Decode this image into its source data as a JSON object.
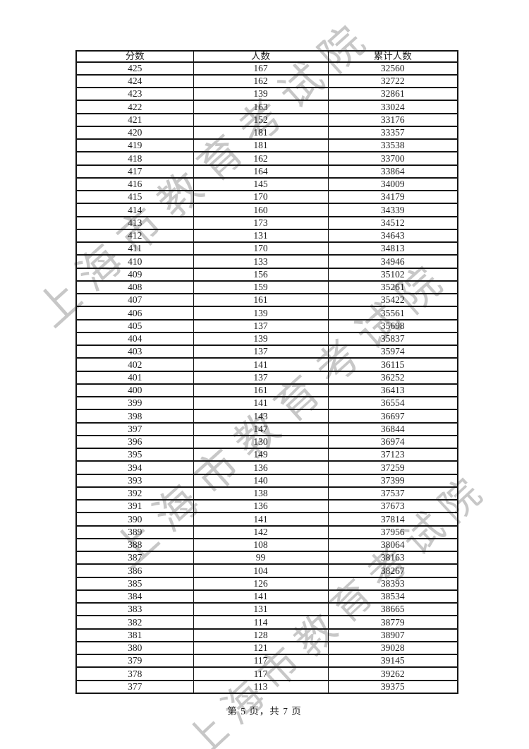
{
  "watermark": {
    "text": "上海市教育考试院",
    "color": "#c2c2c2"
  },
  "table": {
    "headers": [
      "分数",
      "人数",
      "累计人数"
    ],
    "rows": [
      [
        "425",
        "167",
        "32560"
      ],
      [
        "424",
        "162",
        "32722"
      ],
      [
        "423",
        "139",
        "32861"
      ],
      [
        "422",
        "163",
        "33024"
      ],
      [
        "421",
        "152",
        "33176"
      ],
      [
        "420",
        "181",
        "33357"
      ],
      [
        "419",
        "181",
        "33538"
      ],
      [
        "418",
        "162",
        "33700"
      ],
      [
        "417",
        "164",
        "33864"
      ],
      [
        "416",
        "145",
        "34009"
      ],
      [
        "415",
        "170",
        "34179"
      ],
      [
        "414",
        "160",
        "34339"
      ],
      [
        "413",
        "173",
        "34512"
      ],
      [
        "412",
        "131",
        "34643"
      ],
      [
        "411",
        "170",
        "34813"
      ],
      [
        "410",
        "133",
        "34946"
      ],
      [
        "409",
        "156",
        "35102"
      ],
      [
        "408",
        "159",
        "35261"
      ],
      [
        "407",
        "161",
        "35422"
      ],
      [
        "406",
        "139",
        "35561"
      ],
      [
        "405",
        "137",
        "35698"
      ],
      [
        "404",
        "139",
        "35837"
      ],
      [
        "403",
        "137",
        "35974"
      ],
      [
        "402",
        "141",
        "36115"
      ],
      [
        "401",
        "137",
        "36252"
      ],
      [
        "400",
        "161",
        "36413"
      ],
      [
        "399",
        "141",
        "36554"
      ],
      [
        "398",
        "143",
        "36697"
      ],
      [
        "397",
        "147",
        "36844"
      ],
      [
        "396",
        "130",
        "36974"
      ],
      [
        "395",
        "149",
        "37123"
      ],
      [
        "394",
        "136",
        "37259"
      ],
      [
        "393",
        "140",
        "37399"
      ],
      [
        "392",
        "138",
        "37537"
      ],
      [
        "391",
        "136",
        "37673"
      ],
      [
        "390",
        "141",
        "37814"
      ],
      [
        "389",
        "142",
        "37956"
      ],
      [
        "388",
        "108",
        "38064"
      ],
      [
        "387",
        "99",
        "38163"
      ],
      [
        "386",
        "104",
        "38267"
      ],
      [
        "385",
        "126",
        "38393"
      ],
      [
        "384",
        "141",
        "38534"
      ],
      [
        "383",
        "131",
        "38665"
      ],
      [
        "382",
        "114",
        "38779"
      ],
      [
        "381",
        "128",
        "38907"
      ],
      [
        "380",
        "121",
        "39028"
      ],
      [
        "379",
        "117",
        "39145"
      ],
      [
        "378",
        "117",
        "39262"
      ],
      [
        "377",
        "113",
        "39375"
      ]
    ]
  },
  "footer": {
    "text": "第 5 页，共 7 页"
  }
}
